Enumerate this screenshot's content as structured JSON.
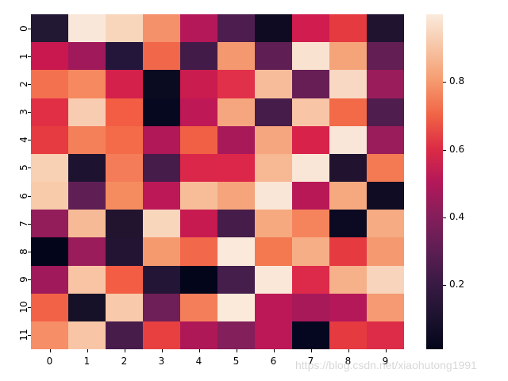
{
  "chart_data": {
    "type": "heatmap",
    "title": "",
    "xlabel": "",
    "ylabel": "",
    "x_ticks": [
      "0",
      "1",
      "2",
      "3",
      "4",
      "5",
      "6",
      "7",
      "8",
      "9"
    ],
    "y_ticks": [
      "0",
      "1",
      "2",
      "3",
      "4",
      "5",
      "6",
      "7",
      "8",
      "9",
      "10",
      "11"
    ],
    "colormap": "rocket",
    "colorbar": {
      "ticks": [
        "0.2",
        "0.4",
        "0.6",
        "0.8"
      ],
      "range": [
        0.01,
        1.0
      ]
    },
    "values": [
      [
        0.12,
        0.98,
        0.93,
        0.77,
        0.45,
        0.25,
        0.04,
        0.52,
        0.6,
        0.1
      ],
      [
        0.49,
        0.4,
        0.13,
        0.67,
        0.22,
        0.79,
        0.3,
        0.97,
        0.81,
        0.3
      ],
      [
        0.69,
        0.75,
        0.53,
        0.02,
        0.51,
        0.57,
        0.87,
        0.31,
        0.95,
        0.39
      ],
      [
        0.57,
        0.91,
        0.64,
        0.01,
        0.47,
        0.82,
        0.23,
        0.89,
        0.67,
        0.26
      ],
      [
        0.59,
        0.72,
        0.67,
        0.44,
        0.65,
        0.42,
        0.82,
        0.55,
        0.98,
        0.39
      ],
      [
        0.92,
        0.1,
        0.72,
        0.23,
        0.56,
        0.56,
        0.86,
        0.98,
        0.1,
        0.71
      ],
      [
        0.91,
        0.3,
        0.76,
        0.47,
        0.87,
        0.81,
        0.98,
        0.46,
        0.83,
        0.05
      ],
      [
        0.38,
        0.86,
        0.11,
        0.94,
        0.49,
        0.23,
        0.83,
        0.74,
        0.03,
        0.83
      ],
      [
        0.01,
        0.39,
        0.12,
        0.79,
        0.66,
        0.99,
        0.71,
        0.84,
        0.6,
        0.79
      ],
      [
        0.4,
        0.89,
        0.64,
        0.12,
        0.01,
        0.23,
        0.98,
        0.56,
        0.85,
        0.94
      ],
      [
        0.65,
        0.08,
        0.91,
        0.33,
        0.73,
        0.99,
        0.47,
        0.42,
        0.45,
        0.79
      ],
      [
        0.77,
        0.9,
        0.24,
        0.61,
        0.44,
        0.36,
        0.47,
        0.02,
        0.6,
        0.56
      ]
    ],
    "cell_colors": [
      [
        "#221833",
        "#f9e8da",
        "#f8d6bc",
        "#f4906a",
        "#b41859",
        "#4c1d4e",
        "#0e0b22",
        "#d01c4e",
        "#e63a41",
        "#1f1330"
      ],
      [
        "#c8184f",
        "#a0195a",
        "#24163a",
        "#f0674a",
        "#421b48",
        "#f4996f",
        "#5f1f54",
        "#fae2d0",
        "#f5a47a",
        "#631e54"
      ],
      [
        "#f47150",
        "#f6895f",
        "#d4214b",
        "#0a0a20",
        "#cb1c4f",
        "#e0304a",
        "#f7bc9a",
        "#671e54",
        "#f8d8c2",
        "#9a1c5b"
      ],
      [
        "#e12f45",
        "#f8ccb0",
        "#f25d44",
        "#060820",
        "#be1856",
        "#f6a67e",
        "#461c4a",
        "#f8c5a6",
        "#f36a48",
        "#4f1d4e"
      ],
      [
        "#e63b41",
        "#f48059",
        "#f36b48",
        "#b01857",
        "#f16045",
        "#a8195a",
        "#f6a67e",
        "#d8224a",
        "#fae6d8",
        "#9a1c5b"
      ],
      [
        "#f8d0b4",
        "#1d1330",
        "#f47c59",
        "#451c4a",
        "#db274a",
        "#dc274a",
        "#f7b894",
        "#fae6d6",
        "#21132f",
        "#f47a53"
      ],
      [
        "#f8cbab",
        "#5f1f54",
        "#f58c60",
        "#bc1857",
        "#f7bd99",
        "#f6a47b",
        "#fae6d6",
        "#b91857",
        "#f6a97f",
        "#100c24"
      ],
      [
        "#931c5a",
        "#f7ba96",
        "#22132f",
        "#f8d6bc",
        "#c61a50",
        "#451c4a",
        "#f6a97f",
        "#f5845c",
        "#0c0a22",
        "#f6ab82"
      ],
      [
        "#03051a",
        "#9a1c5b",
        "#221432",
        "#f59a6e",
        "#f2684a",
        "#fbe9dc",
        "#f47950",
        "#f6ae86",
        "#e63a41",
        "#f59a70"
      ],
      [
        "#a0195a",
        "#f8c4a4",
        "#f35d44",
        "#221535",
        "#03051b",
        "#461e4c",
        "#fae7d8",
        "#dd2a4a",
        "#f6b08a",
        "#f8d4bc"
      ],
      [
        "#f26247",
        "#161128",
        "#f8caab",
        "#6e1f57",
        "#f57e5a",
        "#fbead9",
        "#bc1857",
        "#a8195a",
        "#b41859",
        "#f59a72"
      ],
      [
        "#f68e67",
        "#f8c6a6",
        "#481c4a",
        "#e84041",
        "#ae1857",
        "#831f5a",
        "#bc1857",
        "#050720",
        "#e63a41",
        "#dc2c48"
      ]
    ]
  },
  "watermark": "https://blog.csdn.net/xiaohutong1991"
}
